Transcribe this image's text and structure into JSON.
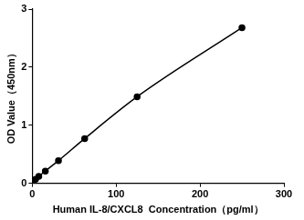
{
  "chart_data": {
    "type": "line",
    "x_label": "Human IL-8/CXCL8  Concentration（pg/ml）",
    "y_label": "OD Value（450nm）",
    "x": [
      0,
      3.9,
      7.8,
      15.6,
      31.25,
      62.5,
      125,
      250
    ],
    "values": [
      0.04,
      0.07,
      0.12,
      0.21,
      0.39,
      0.77,
      1.49,
      2.68
    ],
    "color": "#000000",
    "marker": "circle",
    "xlim": [
      0,
      300
    ],
    "xticks": [
      0,
      100,
      200,
      300
    ],
    "ylim": [
      0,
      3
    ],
    "yticks": [
      0,
      1,
      2,
      3
    ],
    "grid": false
  }
}
